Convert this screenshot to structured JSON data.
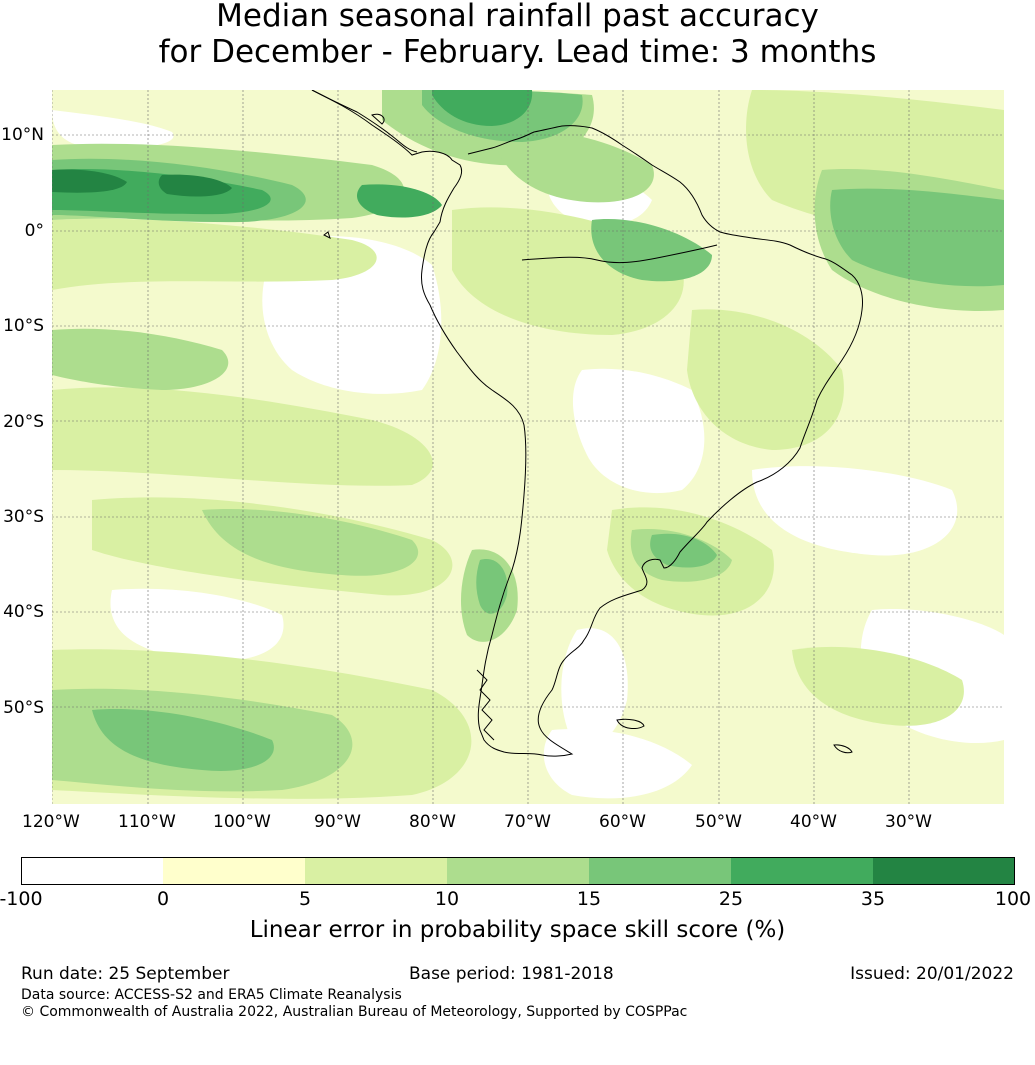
{
  "title": {
    "line1": "Median seasonal rainfall past accuracy",
    "line2": "for December - February. Lead time: 3 months"
  },
  "map": {
    "lat_labels": [
      "10°N",
      "0°",
      "10°S",
      "20°S",
      "30°S",
      "40°S",
      "50°S"
    ],
    "lon_labels": [
      "120°W",
      "110°W",
      "100°W",
      "90°W",
      "80°W",
      "70°W",
      "60°W",
      "50°W",
      "40°W",
      "30°W"
    ],
    "colors": {
      "ocean_base": "#f4facd",
      "land_base": "#f7fbdd",
      "gridline": "#6b6b6b",
      "coast": "#000000"
    }
  },
  "colorbar": {
    "bins": [
      {
        "from": "-100",
        "to": "0",
        "color": "#ffffff"
      },
      {
        "from": "0",
        "to": "5",
        "color": "#ffffcc"
      },
      {
        "from": "5",
        "to": "10",
        "color": "#d9f0a3"
      },
      {
        "from": "10",
        "to": "15",
        "color": "#addd8e"
      },
      {
        "from": "15",
        "to": "25",
        "color": "#78c679"
      },
      {
        "from": "25",
        "to": "35",
        "color": "#41ab5d"
      },
      {
        "from": "35",
        "to": "100",
        "color": "#238443"
      }
    ],
    "ticks": [
      "-100",
      "0",
      "5",
      "10",
      "15",
      "25",
      "35",
      "100"
    ],
    "label": "Linear error in probability space skill score (%)"
  },
  "footer": {
    "run_date": "Run date: 25 September",
    "base_period": "Base period: 1981-2018",
    "issued": "Issued: 20/01/2022",
    "data_source": "Data source: ACCESS-S2 and ERA5 Climate Reanalysis",
    "copyright": "© Commonwealth of Australia 2022, Australian Bureau of Meteorology, Supported by COSPPac"
  }
}
